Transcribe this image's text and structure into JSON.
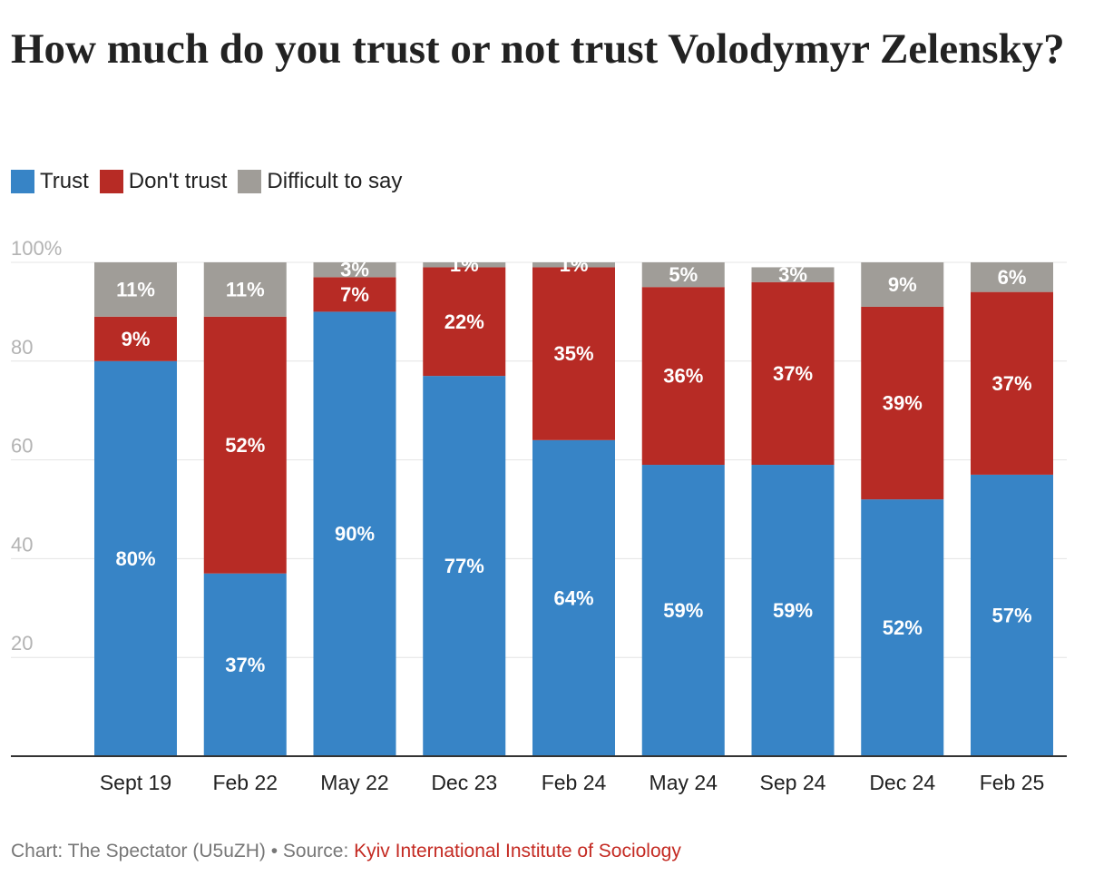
{
  "title": "How much do you trust or not trust Volodymyr Zelensky?",
  "legend": [
    {
      "label": "Trust",
      "color": "#3784c6"
    },
    {
      "label": "Don't trust",
      "color": "#b72b25"
    },
    {
      "label": "Difficult to say",
      "color": "#a09d98"
    }
  ],
  "chart_data": {
    "type": "bar",
    "stacked": true,
    "categories": [
      "Sept 19",
      "Feb 22",
      "May 22",
      "Dec 23",
      "Feb 24",
      "May 24",
      "Sep 24",
      "Dec 24",
      "Feb 25"
    ],
    "series": [
      {
        "name": "Trust",
        "color": "#3784c6",
        "values": [
          80,
          37,
          90,
          77,
          64,
          59,
          59,
          52,
          57
        ]
      },
      {
        "name": "Don't trust",
        "color": "#b72b25",
        "values": [
          9,
          52,
          7,
          22,
          35,
          36,
          37,
          39,
          37
        ]
      },
      {
        "name": "Difficult to say",
        "color": "#a09d98",
        "values": [
          11,
          11,
          3,
          1,
          1,
          5,
          3,
          9,
          6
        ]
      }
    ],
    "y_ticks": [
      "20",
      "40",
      "60",
      "80",
      "100%"
    ],
    "y_tick_values": [
      20,
      40,
      60,
      80,
      100
    ],
    "ylim": [
      0,
      100
    ],
    "value_suffix": "%",
    "grid": true,
    "legend_position": "top-left"
  },
  "footer": {
    "credit": "Chart: The Spectator (U5uZH) • Source: ",
    "source": "Kyiv International Institute of Sociology"
  }
}
